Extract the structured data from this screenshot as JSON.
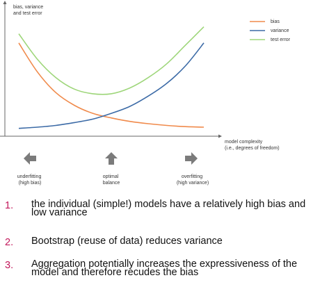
{
  "chart_data": {
    "type": "line",
    "ylabel": [
      "bias, variance",
      "and test error"
    ],
    "xlabel": [
      "model complexity",
      "(i.e., degrees of freedom)"
    ],
    "x": [
      0,
      0.1,
      0.2,
      0.3,
      0.4,
      0.5,
      0.6,
      0.7,
      0.8,
      0.9,
      1.0
    ],
    "ylim": [
      0,
      1
    ],
    "xlim": [
      0,
      1
    ],
    "axis_ticks": false,
    "legend_position": "top-right",
    "series": [
      {
        "name": "bias",
        "color": "#f08a4b",
        "values": [
          0.76,
          0.51,
          0.33,
          0.22,
          0.15,
          0.11,
          0.08,
          0.06,
          0.045,
          0.035,
          0.03
        ]
      },
      {
        "name": "variance",
        "color": "#3b6aa6",
        "values": [
          0.02,
          0.03,
          0.045,
          0.07,
          0.1,
          0.15,
          0.21,
          0.3,
          0.41,
          0.56,
          0.76
        ]
      },
      {
        "name": "test error",
        "color": "#9ed67a",
        "values": [
          0.84,
          0.62,
          0.46,
          0.36,
          0.32,
          0.32,
          0.37,
          0.46,
          0.58,
          0.74,
          0.9
        ]
      }
    ]
  },
  "regions": [
    {
      "direction": "left",
      "label_lines": [
        "underfitting",
        "(high bias)"
      ]
    },
    {
      "direction": "up",
      "label_lines": [
        "optimal",
        "balance"
      ]
    },
    {
      "direction": "right",
      "label_lines": [
        "overfitting",
        "(high variance)"
      ]
    }
  ],
  "points": [
    {
      "number": "1.",
      "text": "the individual (simple!) models have a relatively high bias and low variance"
    },
    {
      "number": "2.",
      "text": "Bootstrap (reuse of data) reduces variance"
    },
    {
      "number": "3.",
      "text": "Aggregation potentially increases the expressiveness of the model and therefore recudes the bias"
    }
  ]
}
